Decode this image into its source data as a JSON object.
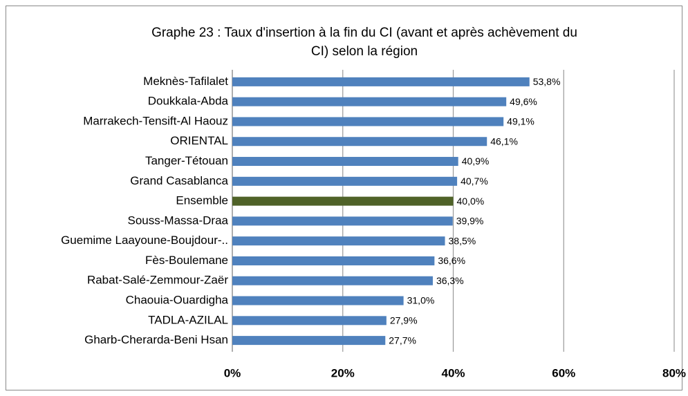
{
  "chart_data": {
    "type": "bar",
    "orientation": "horizontal",
    "title": [
      "Graphe 23 : Taux d'insertion à la fin du CI (avant et après achèvement du",
      "CI) selon la région"
    ],
    "categories": [
      "Meknès-Tafilalet",
      "Doukkala-Abda",
      "Marrakech-Tensift-Al Haouz",
      "ORIENTAL",
      "Tanger-Tétouan",
      "Grand Casablanca",
      "Ensemble",
      "Souss-Massa-Draa",
      "Guemime Laayoune-Boujdour-..",
      "Fès-Boulemane",
      "Rabat-Salé-Zemmour-Zaër",
      "Chaouia-Ouardigha",
      "TADLA-AZILAL",
      "Gharb-Cherarda-Beni Hsan"
    ],
    "values": [
      53.8,
      49.6,
      49.1,
      46.1,
      40.9,
      40.7,
      40.0,
      39.9,
      38.5,
      36.6,
      36.3,
      31.0,
      27.9,
      27.7
    ],
    "value_labels": [
      "53,8%",
      "49,6%",
      "49,1%",
      "46,1%",
      "40,9%",
      "40,7%",
      "40,0%",
      "39,9%",
      "38,5%",
      "36,6%",
      "36,3%",
      "31,0%",
      "27,9%",
      "27,7%"
    ],
    "colors": [
      "#4f81bd",
      "#4f81bd",
      "#4f81bd",
      "#4f81bd",
      "#4f81bd",
      "#4f81bd",
      "#4f6228",
      "#4f81bd",
      "#4f81bd",
      "#4f81bd",
      "#4f81bd",
      "#4f81bd",
      "#4f81bd",
      "#4f81bd"
    ],
    "xlim": [
      0,
      80
    ],
    "xticks": [
      {
        "value": 0,
        "label": "0%"
      },
      {
        "value": 20,
        "label": "20%"
      },
      {
        "value": 40,
        "label": "40%"
      },
      {
        "value": 60,
        "label": "60%"
      },
      {
        "value": 80,
        "label": "80%"
      }
    ],
    "grid": true
  }
}
